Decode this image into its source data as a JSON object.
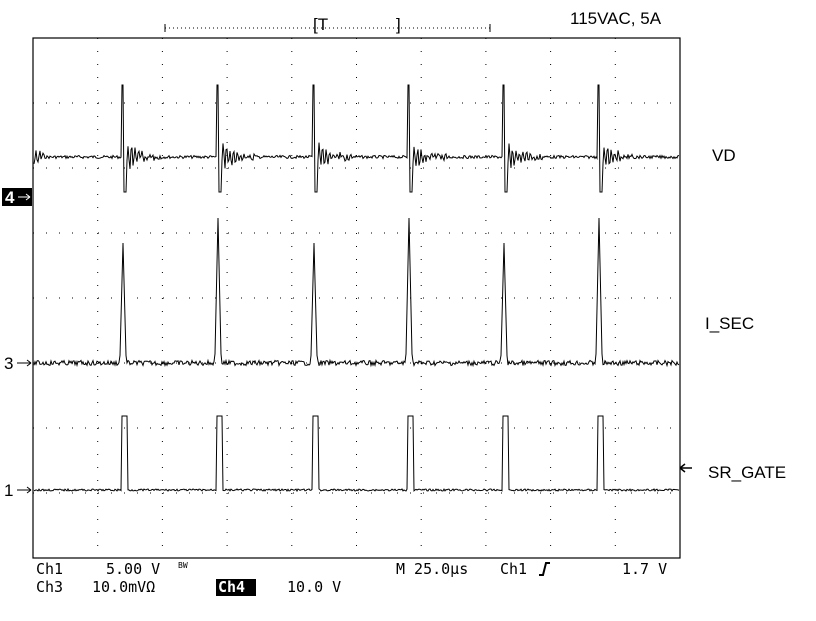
{
  "header": {
    "title": "115VAC, 5A",
    "trigger_left": "[T",
    "trigger_right": "]"
  },
  "traces": [
    {
      "label": "VD",
      "marker": "4"
    },
    {
      "label": "I_SEC",
      "marker": "3"
    },
    {
      "label": "SR_GATE",
      "marker": "1"
    }
  ],
  "status": {
    "row1": {
      "channel": "Ch1",
      "scale": "5.00 V",
      "bandwidth": "BW",
      "timebase": "M 25.0µs",
      "trigger_channel": "Ch1",
      "trigger_level": "1.7 V"
    },
    "row2": {
      "channel": "Ch3",
      "scale": "10.0mVΩ",
      "channel2": "Ch4",
      "scale2": "10.0 V"
    }
  }
}
